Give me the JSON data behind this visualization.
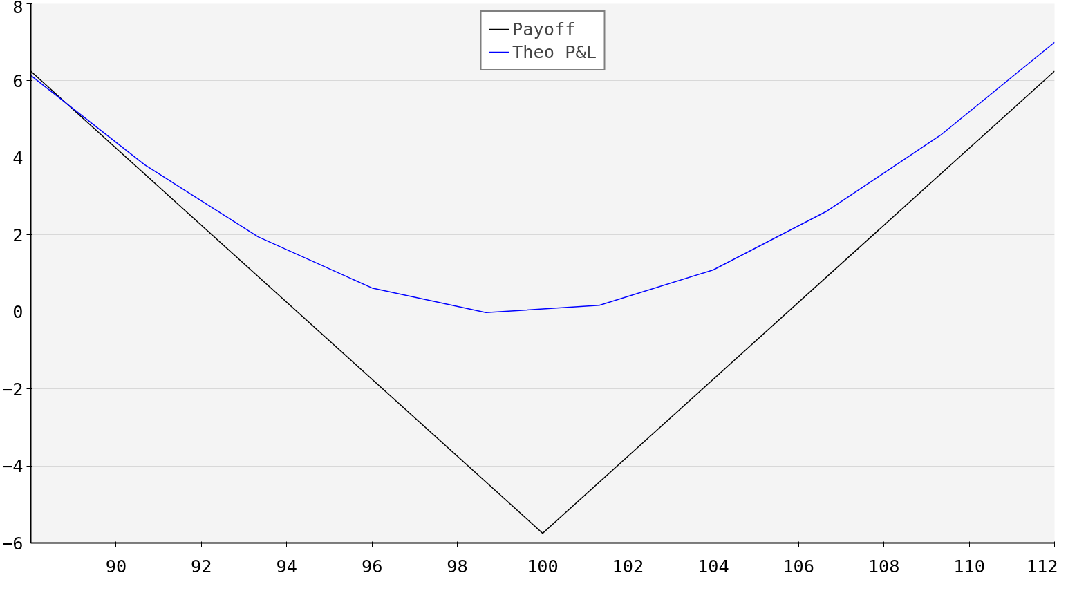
{
  "chart_data": {
    "type": "line",
    "xlim": [
      88,
      112
    ],
    "ylim": [
      -6,
      8
    ],
    "xticks": [
      90,
      92,
      94,
      96,
      98,
      100,
      102,
      104,
      106,
      108,
      110,
      112
    ],
    "yticks": [
      -6,
      -4,
      -2,
      0,
      2,
      4,
      6,
      8
    ],
    "grid": "y",
    "legend": "top right",
    "line_style": "solid",
    "series": [
      {
        "name": "Payoff",
        "color": "#000000",
        "x": [
          88,
          100,
          112
        ],
        "values": [
          6.25,
          -5.75,
          6.25
        ]
      },
      {
        "name": "Theo P&L",
        "color": "#0000ff",
        "x": [
          88,
          90.67,
          93.33,
          96,
          98.67,
          101.33,
          104,
          106.67,
          109.33,
          112
        ],
        "values": [
          6.14,
          3.82,
          1.95,
          0.62,
          -0.02,
          0.17,
          1.09,
          2.62,
          4.59,
          7.0
        ]
      }
    ]
  }
}
